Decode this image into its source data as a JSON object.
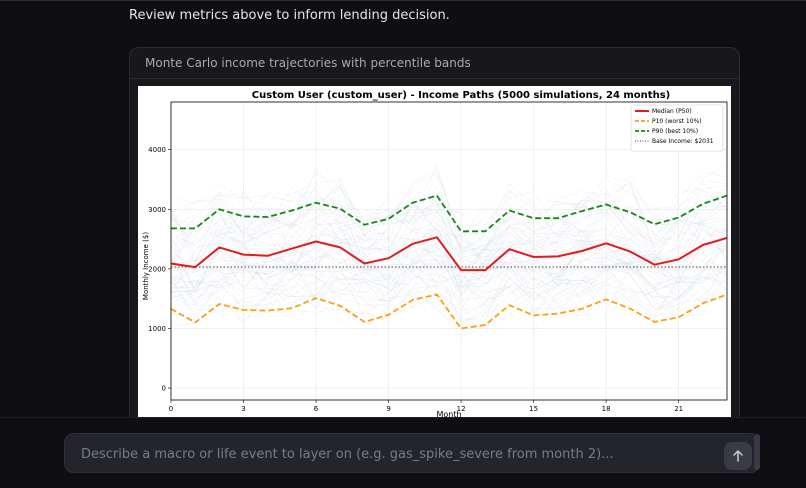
{
  "chat": {
    "review_text": "Review metrics above to inform lending decision.",
    "card_title": "Monte Carlo income trajectories with percentile bands"
  },
  "composer": {
    "placeholder": "Describe a macro or life event to layer on (e.g. gas_spike_severe from month 2)...",
    "value": ""
  },
  "icons": {
    "send": "arrow-up-icon"
  },
  "chart_data": {
    "type": "line",
    "title": "Custom User (custom_user) - Income Paths (5000 simulations, 24 months)",
    "xlabel": "Month",
    "ylabel": "Monthly Income ($)",
    "xlim": [
      0,
      23
    ],
    "ylim": [
      -200,
      4800
    ],
    "xticks": [
      0,
      3,
      6,
      9,
      12,
      15,
      18,
      21
    ],
    "yticks": [
      0,
      1000,
      2000,
      3000,
      4000
    ],
    "grid": true,
    "legend_position": "top-right",
    "x": [
      0,
      1,
      2,
      3,
      4,
      5,
      6,
      7,
      8,
      9,
      10,
      11,
      12,
      13,
      14,
      15,
      16,
      17,
      18,
      19,
      20,
      21,
      22,
      23
    ],
    "series": [
      {
        "name": "Median (P50)",
        "color": "#e41a1c",
        "style": "solid",
        "values": [
          2090,
          2030,
          2360,
          2240,
          2220,
          2340,
          2460,
          2360,
          2090,
          2180,
          2420,
          2530,
          1980,
          1980,
          2330,
          2200,
          2210,
          2300,
          2430,
          2290,
          2070,
          2160,
          2400,
          2520
        ]
      },
      {
        "name": "P10 (worst 10%)",
        "color": "#ff9f0f",
        "style": "dashed",
        "values": [
          1330,
          1100,
          1410,
          1310,
          1300,
          1340,
          1510,
          1380,
          1110,
          1230,
          1480,
          1570,
          1000,
          1060,
          1390,
          1220,
          1250,
          1330,
          1490,
          1330,
          1110,
          1190,
          1420,
          1570
        ]
      },
      {
        "name": "P90 (best 10%)",
        "color": "#128a12",
        "style": "dashed",
        "values": [
          2680,
          2680,
          3000,
          2880,
          2870,
          2980,
          3110,
          3010,
          2740,
          2840,
          3110,
          3230,
          2630,
          2630,
          2980,
          2850,
          2850,
          2970,
          3080,
          2950,
          2750,
          2860,
          3090,
          3230
        ]
      },
      {
        "name": "Base Income: $2031",
        "color": "#444444",
        "style": "dotted",
        "values": [
          2031,
          2031,
          2031,
          2031,
          2031,
          2031,
          2031,
          2031,
          2031,
          2031,
          2031,
          2031,
          2031,
          2031,
          2031,
          2031,
          2031,
          2031,
          2031,
          2031,
          2031,
          2031,
          2031,
          2031
        ]
      }
    ]
  }
}
